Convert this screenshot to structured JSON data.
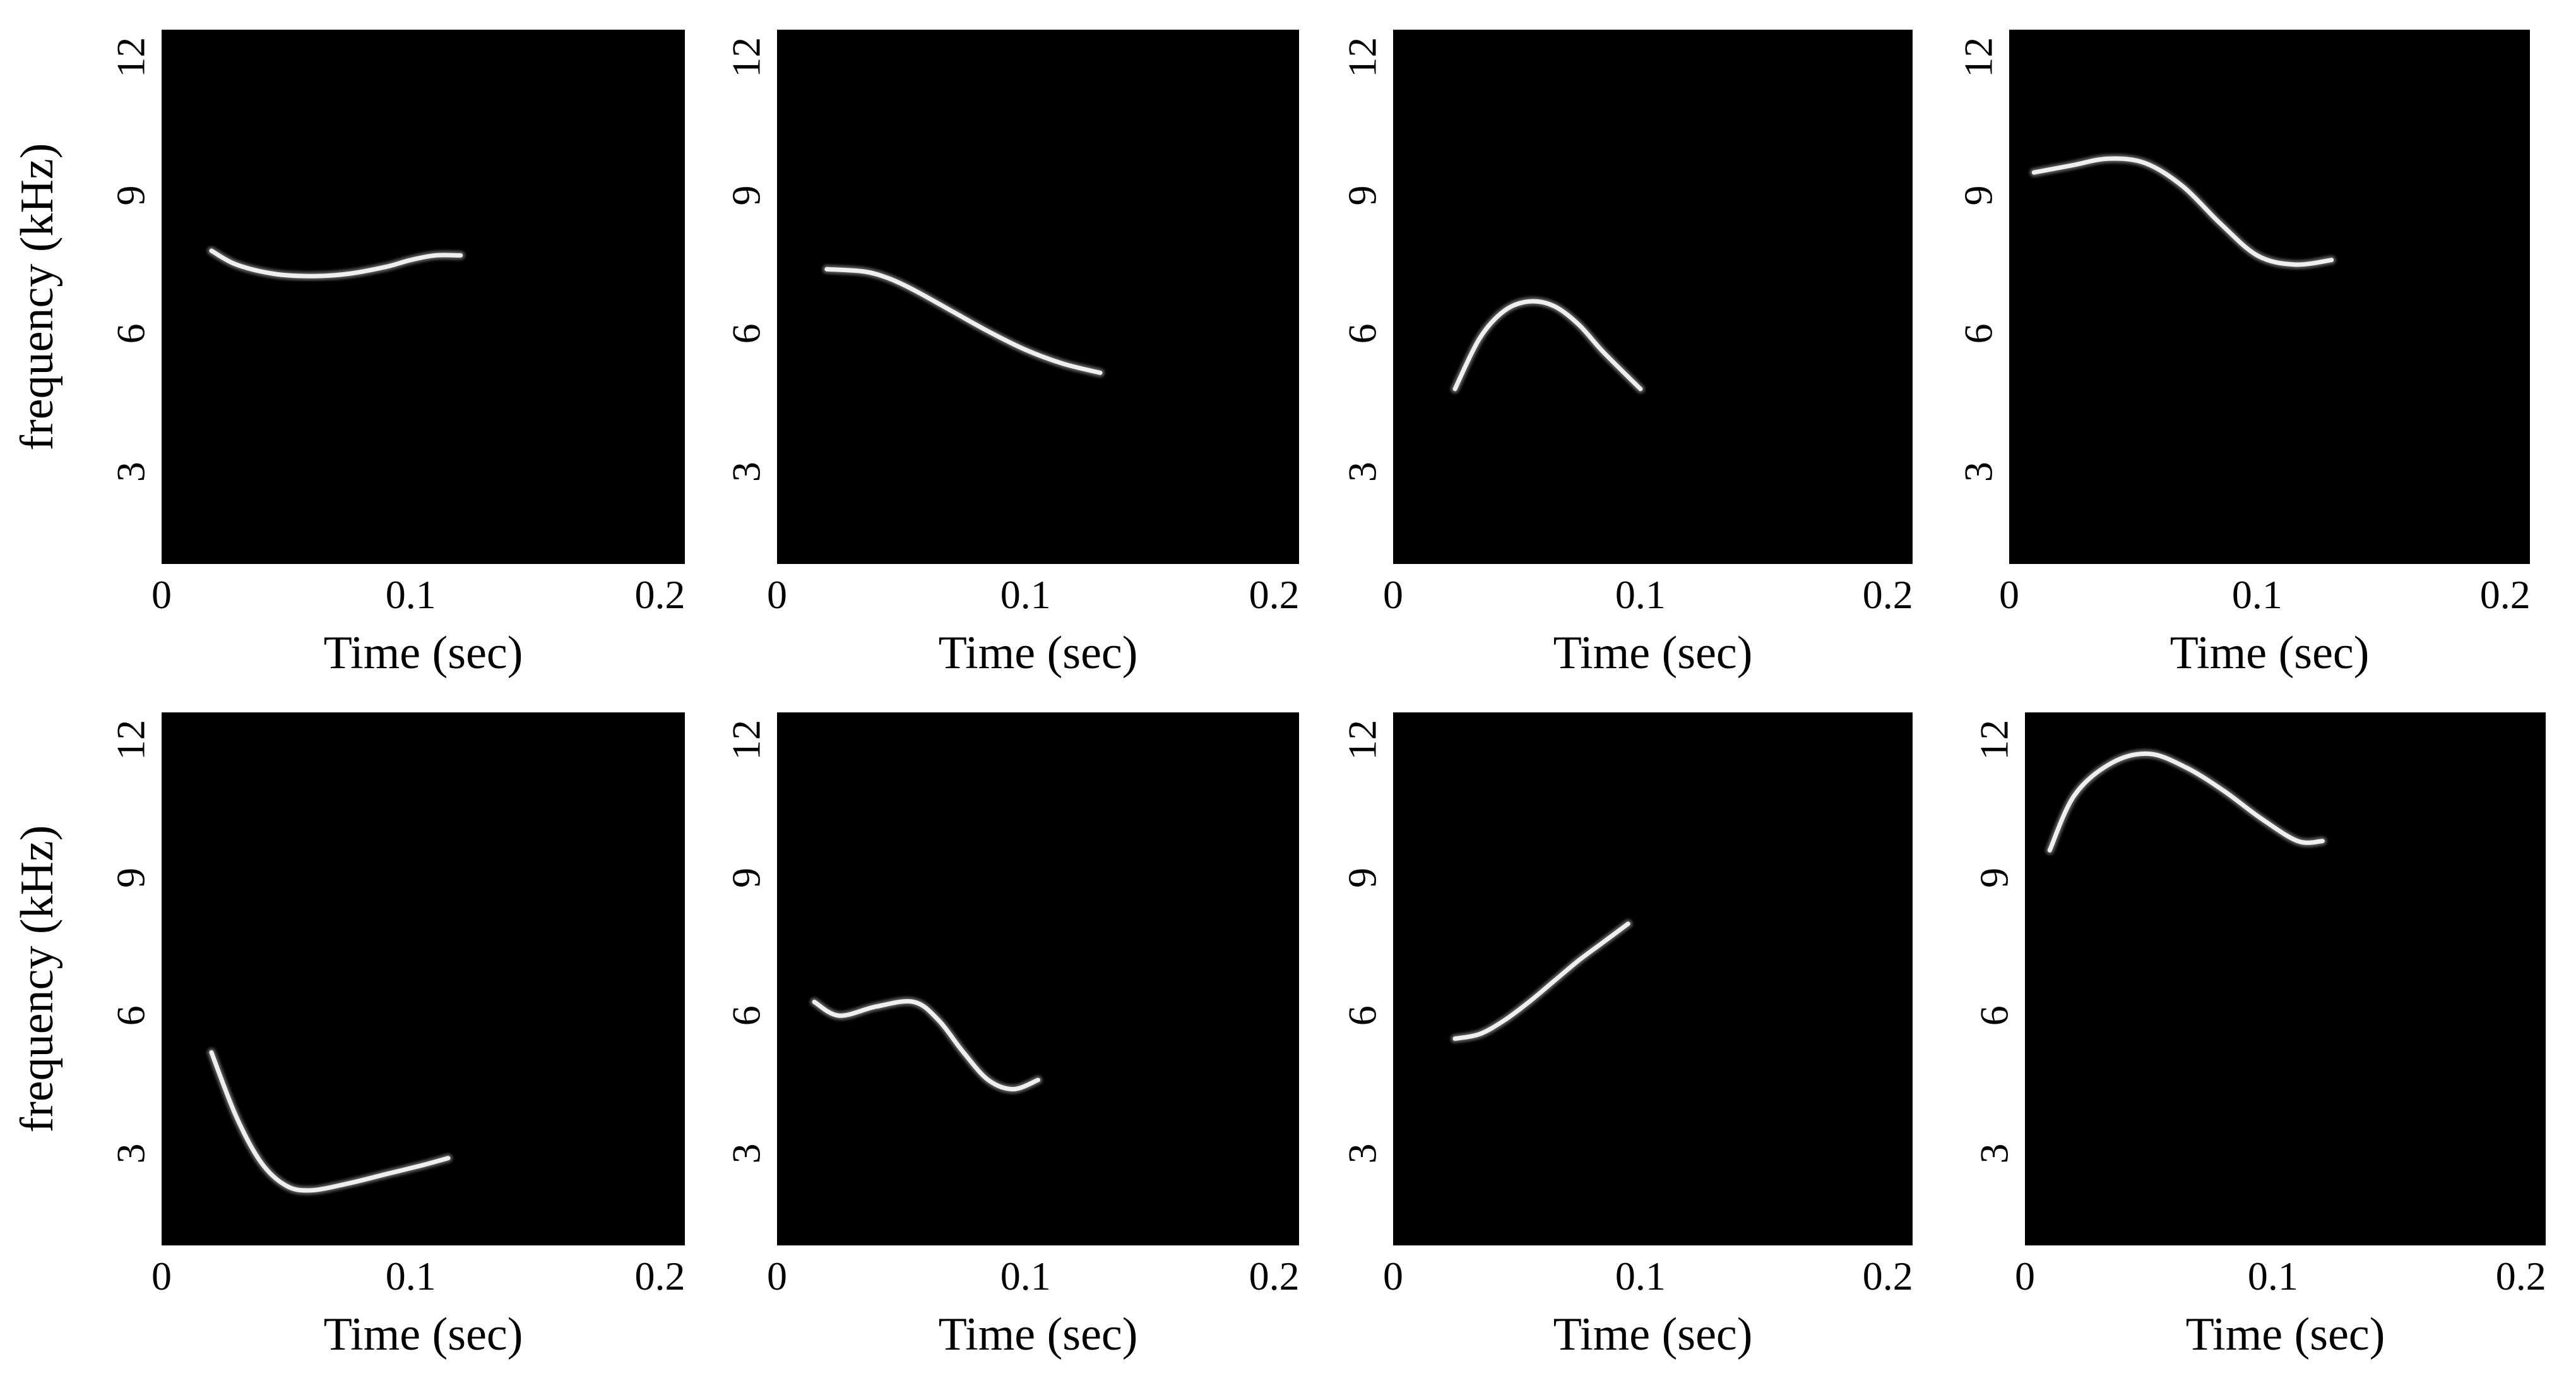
{
  "figure": {
    "background": "#ffffff",
    "plot_background": "#000000",
    "trace_color": "#ffffff"
  },
  "chart_data": [
    {
      "type": "line",
      "panel": "row1-col1",
      "xlabel": "Time (sec)",
      "ylabel": "frequency (kHz)",
      "xlim": [
        0,
        0.21
      ],
      "ylim": [
        1,
        12.6
      ],
      "xticks": [
        "0",
        "0.1",
        "0.2"
      ],
      "yticks": [
        "3",
        "6",
        "9",
        "12"
      ],
      "series": [
        {
          "x": [
            0.02,
            0.03,
            0.045,
            0.06,
            0.075,
            0.09,
            0.1,
            0.11,
            0.12
          ],
          "y": [
            7.8,
            7.5,
            7.3,
            7.25,
            7.3,
            7.45,
            7.6,
            7.7,
            7.7
          ]
        }
      ]
    },
    {
      "type": "line",
      "panel": "row1-col2",
      "xlabel": "Time (sec)",
      "ylabel": "",
      "xlim": [
        0,
        0.21
      ],
      "ylim": [
        1,
        12.6
      ],
      "xticks": [
        "0",
        "0.1",
        "0.2"
      ],
      "yticks": [
        "3",
        "6",
        "9",
        "12"
      ],
      "series": [
        {
          "x": [
            0.02,
            0.035,
            0.045,
            0.055,
            0.07,
            0.085,
            0.1,
            0.115,
            0.13
          ],
          "y": [
            7.4,
            7.35,
            7.2,
            6.95,
            6.5,
            6.05,
            5.65,
            5.35,
            5.15
          ]
        }
      ]
    },
    {
      "type": "line",
      "panel": "row1-col3",
      "xlabel": "Time (sec)",
      "ylabel": "",
      "xlim": [
        0,
        0.21
      ],
      "ylim": [
        1,
        12.6
      ],
      "xticks": [
        "0",
        "0.1",
        "0.2"
      ],
      "yticks": [
        "3",
        "6",
        "9",
        "12"
      ],
      "series": [
        {
          "x": [
            0.025,
            0.035,
            0.045,
            0.055,
            0.065,
            0.075,
            0.085,
            0.1
          ],
          "y": [
            4.8,
            5.9,
            6.5,
            6.7,
            6.6,
            6.2,
            5.6,
            4.8
          ]
        }
      ]
    },
    {
      "type": "line",
      "panel": "row1-col4",
      "xlabel": "Time (sec)",
      "ylabel": "",
      "xlim": [
        0,
        0.21
      ],
      "ylim": [
        1,
        12.6
      ],
      "xticks": [
        "0",
        "0.1",
        "0.2"
      ],
      "yticks": [
        "3",
        "6",
        "9",
        "12"
      ],
      "series": [
        {
          "x": [
            0.01,
            0.025,
            0.04,
            0.055,
            0.07,
            0.085,
            0.1,
            0.115,
            0.13
          ],
          "y": [
            9.5,
            9.65,
            9.8,
            9.7,
            9.2,
            8.4,
            7.7,
            7.5,
            7.6
          ]
        }
      ]
    },
    {
      "type": "line",
      "panel": "row2-col1",
      "xlabel": "Time (sec)",
      "ylabel": "frequency (kHz)",
      "xlim": [
        0,
        0.21
      ],
      "ylim": [
        1,
        12.6
      ],
      "xticks": [
        "0",
        "0.1",
        "0.2"
      ],
      "yticks": [
        "3",
        "6",
        "9",
        "12"
      ],
      "series": [
        {
          "x": [
            0.02,
            0.03,
            0.04,
            0.05,
            0.06,
            0.075,
            0.09,
            0.105,
            0.115
          ],
          "y": [
            5.2,
            3.8,
            2.8,
            2.3,
            2.2,
            2.35,
            2.55,
            2.75,
            2.9
          ]
        }
      ]
    },
    {
      "type": "line",
      "panel": "row2-col2",
      "xlabel": "Time (sec)",
      "ylabel": "",
      "xlim": [
        0,
        0.21
      ],
      "ylim": [
        1,
        12.6
      ],
      "xticks": [
        "0",
        "0.1",
        "0.2"
      ],
      "yticks": [
        "3",
        "6",
        "9",
        "12"
      ],
      "series": [
        {
          "x": [
            0.015,
            0.025,
            0.04,
            0.055,
            0.065,
            0.075,
            0.085,
            0.095,
            0.105
          ],
          "y": [
            6.3,
            6.0,
            6.2,
            6.3,
            5.9,
            5.2,
            4.6,
            4.4,
            4.6
          ]
        }
      ]
    },
    {
      "type": "line",
      "panel": "row2-col3",
      "xlabel": "Time (sec)",
      "ylabel": "",
      "xlim": [
        0,
        0.21
      ],
      "ylim": [
        1,
        12.6
      ],
      "xticks": [
        "0",
        "0.1",
        "0.2"
      ],
      "yticks": [
        "3",
        "6",
        "9",
        "12"
      ],
      "series": [
        {
          "x": [
            0.025,
            0.035,
            0.045,
            0.055,
            0.065,
            0.075,
            0.085,
            0.095
          ],
          "y": [
            5.5,
            5.6,
            5.9,
            6.3,
            6.75,
            7.2,
            7.6,
            8.0
          ]
        }
      ]
    },
    {
      "type": "line",
      "panel": "row2-col4",
      "xlabel": "Time (sec)",
      "ylabel": "",
      "xlim": [
        0,
        0.21
      ],
      "ylim": [
        1,
        12.6
      ],
      "xticks": [
        "0",
        "0.1",
        "0.2"
      ],
      "yticks": [
        "3",
        "6",
        "9",
        "12"
      ],
      "series": [
        {
          "x": [
            0.01,
            0.02,
            0.035,
            0.05,
            0.065,
            0.08,
            0.095,
            0.11,
            0.12
          ],
          "y": [
            9.6,
            10.8,
            11.5,
            11.7,
            11.4,
            10.9,
            10.3,
            9.8,
            9.8
          ]
        }
      ]
    }
  ]
}
